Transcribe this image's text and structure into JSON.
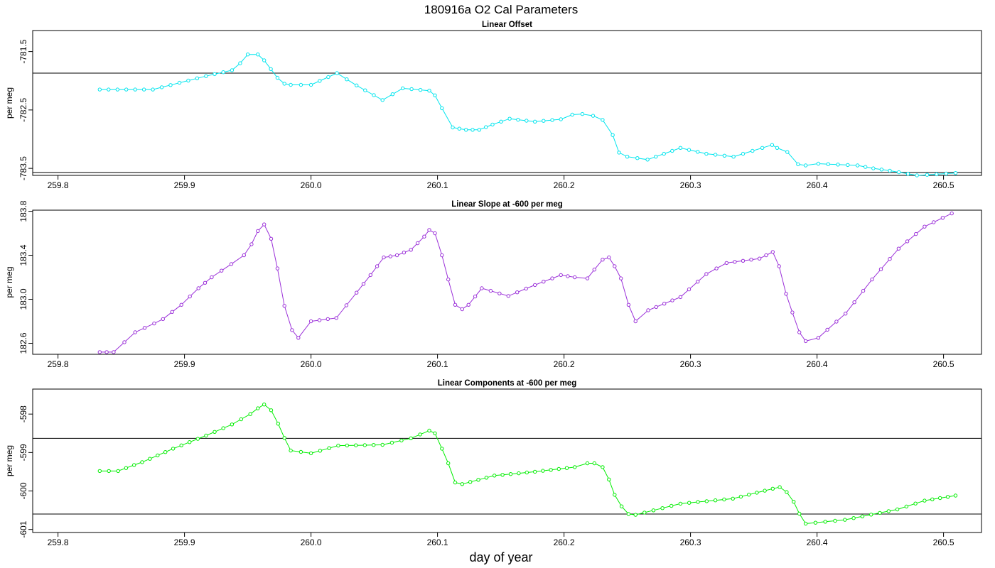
{
  "title": "180916a   O2 Cal Parameters",
  "xlabel": "day of year",
  "chart_data": [
    {
      "type": "line",
      "title": "Linear Offset",
      "ylabel": "per meg",
      "color": "#00e5ee",
      "xlim": [
        259.78,
        260.53
      ],
      "ylim": [
        -783.62,
        -781.14
      ],
      "xticks": [
        259.8,
        259.9,
        260.0,
        260.1,
        260.2,
        260.3,
        260.4,
        260.5
      ],
      "xtick_labels": [
        "259.8",
        "259.9",
        "260.0",
        "260.1",
        "260.2",
        "260.3",
        "260.4",
        "260.5"
      ],
      "yticks": [
        -781.5,
        -782.5,
        -783.5
      ],
      "ytick_labels": [
        "-781.5",
        "-782.5",
        "-783.5"
      ],
      "hlines": [
        -781.87,
        -783.57
      ],
      "series": [
        {
          "x": [
            259.833,
            259.875,
            259.917,
            259.9375,
            259.944,
            259.95,
            259.958,
            259.963,
            259.9735,
            259.979,
            259.984,
            260.0,
            260.0205,
            260.036,
            260.0565,
            260.0725,
            260.0935,
            260.098,
            260.1035,
            260.112,
            260.1225,
            260.133,
            260.1435,
            260.157,
            260.177,
            260.1975,
            260.2065,
            260.2145,
            260.223,
            260.2305,
            260.2385,
            260.2435,
            260.25,
            260.266,
            260.292,
            260.3125,
            260.334,
            260.349,
            260.3645,
            260.3685,
            260.3765,
            260.385,
            260.391,
            260.401,
            260.432,
            260.4445,
            260.4575,
            260.479,
            260.487,
            260.5095
          ],
          "y": [
            -782.15,
            -782.15,
            -781.92,
            -781.82,
            -781.7,
            -781.55,
            -781.55,
            -781.65,
            -781.95,
            -782.05,
            -782.07,
            -782.07,
            -781.87,
            -782.08,
            -782.33,
            -782.13,
            -782.17,
            -782.25,
            -782.47,
            -782.8,
            -782.84,
            -782.84,
            -782.75,
            -782.65,
            -782.7,
            -782.66,
            -782.58,
            -782.57,
            -782.6,
            -782.67,
            -782.93,
            -783.23,
            -783.3,
            -783.35,
            -783.15,
            -783.25,
            -783.3,
            -783.2,
            -783.1,
            -783.15,
            -783.22,
            -783.43,
            -783.45,
            -783.42,
            -783.45,
            -783.5,
            -783.54,
            -783.62,
            -783.61,
            -783.58
          ]
        }
      ]
    },
    {
      "type": "line",
      "title": "Linear Slope at -600 per meg",
      "ylabel": "per meg",
      "color": "#9b30d9",
      "xlim": [
        259.78,
        260.53
      ],
      "ylim": [
        182.5,
        183.81
      ],
      "xticks": [
        259.8,
        259.9,
        260.0,
        260.1,
        260.2,
        260.3,
        260.4,
        260.5
      ],
      "xtick_labels": [
        "259.8",
        "259.9",
        "260.0",
        "260.1",
        "260.2",
        "260.3",
        "260.4",
        "260.5"
      ],
      "yticks": [
        182.6,
        183.0,
        183.4,
        183.8
      ],
      "ytick_labels": [
        "182.6",
        "183.0",
        "183.4",
        "183.8"
      ],
      "hlines": [
        182.5
      ],
      "series": [
        {
          "x": [
            259.833,
            259.844,
            259.861,
            259.876,
            259.883,
            259.8975,
            259.911,
            259.9215,
            259.937,
            259.947,
            259.953,
            259.958,
            259.963,
            259.9685,
            259.9735,
            259.979,
            259.985,
            259.99,
            260.0,
            260.02,
            260.036,
            260.047,
            260.0575,
            260.068,
            260.079,
            260.0895,
            260.0935,
            260.098,
            260.1035,
            260.1085,
            260.114,
            260.1195,
            260.1245,
            260.135,
            260.156,
            260.177,
            260.1975,
            260.2085,
            260.2185,
            260.224,
            260.2305,
            260.2355,
            260.24,
            260.245,
            260.251,
            260.2565,
            260.2665,
            260.292,
            260.3125,
            260.3285,
            260.3545,
            260.365,
            260.37,
            260.3755,
            260.3805,
            260.386,
            260.391,
            260.401,
            260.4225,
            260.4435,
            260.4645,
            260.485,
            260.5065
          ],
          "y": [
            182.52,
            182.52,
            182.7,
            182.78,
            182.82,
            182.95,
            183.1,
            183.2,
            183.32,
            183.4,
            183.5,
            183.62,
            183.68,
            183.55,
            183.28,
            182.94,
            182.72,
            182.65,
            182.8,
            182.83,
            183.06,
            183.22,
            183.38,
            183.4,
            183.45,
            183.57,
            183.63,
            183.6,
            183.4,
            183.18,
            182.95,
            182.91,
            182.95,
            183.1,
            183.03,
            183.13,
            183.22,
            183.2,
            183.19,
            183.27,
            183.36,
            183.38,
            183.3,
            183.19,
            182.95,
            182.8,
            182.9,
            183.02,
            183.23,
            183.33,
            183.37,
            183.43,
            183.3,
            183.05,
            182.88,
            182.7,
            182.62,
            182.65,
            182.87,
            183.18,
            183.46,
            183.66,
            183.78
          ]
        }
      ]
    },
    {
      "type": "line",
      "title": "Linear Components at -600 per meg",
      "ylabel": "per meg",
      "color": "#00ee00",
      "xlim": [
        259.78,
        260.53
      ],
      "ylim": [
        -601.08,
        -597.35
      ],
      "xticks": [
        259.8,
        259.9,
        260.0,
        260.1,
        260.2,
        260.3,
        260.4,
        260.5
      ],
      "xtick_labels": [
        "259.8",
        "259.9",
        "260.0",
        "260.1",
        "260.2",
        "260.3",
        "260.4",
        "260.5"
      ],
      "yticks": [
        -598,
        -599,
        -600,
        -601
      ],
      "ytick_labels": [
        "-598",
        "-599",
        "-600",
        "-601"
      ],
      "hlines": [
        -598.63,
        -600.6
      ],
      "series": [
        {
          "x": [
            259.833,
            259.8475,
            259.8665,
            259.891,
            259.917,
            259.9375,
            259.952,
            259.958,
            259.963,
            259.9685,
            259.974,
            259.979,
            259.984,
            260.0,
            260.0215,
            260.0565,
            260.079,
            260.0935,
            260.098,
            260.1035,
            260.1085,
            260.114,
            260.1195,
            260.145,
            260.177,
            260.2085,
            260.2185,
            260.224,
            260.2305,
            260.2355,
            260.24,
            260.2455,
            260.251,
            260.2565,
            260.292,
            260.3335,
            260.365,
            260.3705,
            260.376,
            260.3815,
            260.386,
            260.391,
            260.422,
            260.4635,
            260.485,
            260.5095
          ],
          "y": [
            -599.48,
            -599.48,
            -599.25,
            -598.9,
            -598.56,
            -598.27,
            -598.0,
            -597.85,
            -597.75,
            -597.9,
            -598.25,
            -598.62,
            -598.95,
            -599.02,
            -598.82,
            -598.8,
            -598.63,
            -598.43,
            -598.5,
            -598.9,
            -599.28,
            -599.78,
            -599.82,
            -599.6,
            -599.5,
            -599.38,
            -599.28,
            -599.28,
            -599.38,
            -599.7,
            -600.1,
            -600.4,
            -600.6,
            -600.62,
            -600.33,
            -600.2,
            -599.94,
            -599.9,
            -600.03,
            -600.28,
            -600.59,
            -600.85,
            -600.75,
            -600.48,
            -600.25,
            -600.12
          ]
        }
      ]
    }
  ]
}
